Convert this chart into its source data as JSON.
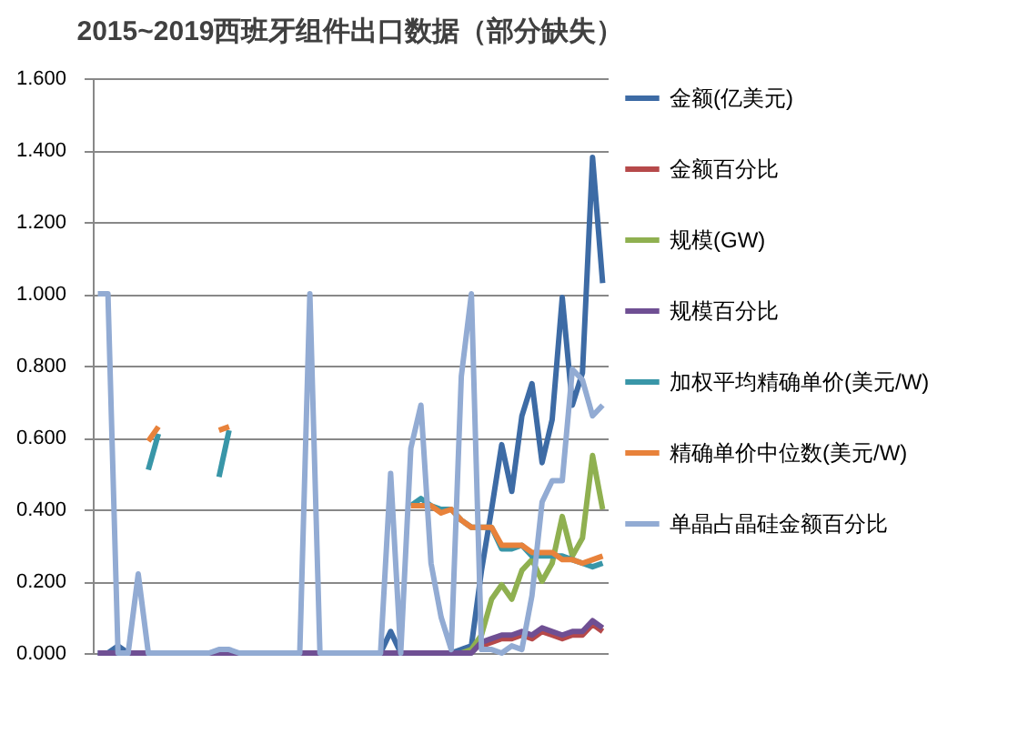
{
  "chart_data": {
    "type": "line",
    "title": "2015~2019西班牙组件出口数据（部分缺失）",
    "categories": [
      null,
      null,
      null,
      null,
      null,
      null,
      null,
      null,
      null,
      null,
      null,
      null,
      null,
      null,
      null,
      null,
      null,
      null,
      null,
      null,
      null,
      null,
      null,
      null,
      null,
      null,
      null,
      null,
      null,
      null,
      null,
      null,
      null,
      null,
      null,
      null,
      null,
      null,
      null,
      null,
      null,
      null,
      null,
      null,
      null,
      null,
      null,
      null,
      null,
      null,
      null
    ],
    "ylim": [
      0,
      1.6
    ],
    "yticks": [
      {
        "value": 0,
        "label": "0.000"
      },
      {
        "value": 0.2,
        "label": "0.200"
      },
      {
        "value": 0.4,
        "label": "0.400"
      },
      {
        "value": 0.6,
        "label": "0.600"
      },
      {
        "value": 0.8,
        "label": "0.800"
      },
      {
        "value": 1,
        "label": "1.000"
      },
      {
        "value": 1.2,
        "label": "1.200"
      },
      {
        "value": 1.4,
        "label": "1.400"
      },
      {
        "value": 1.6,
        "label": "1.600"
      }
    ],
    "grid": "y",
    "legend": "right",
    "tick_labels": "y",
    "marker": "none",
    "line_style": "solid",
    "series": [
      {
        "name": "金额(亿美元)",
        "color": "#3d6ba5",
        "values": [
          0,
          0,
          0.02,
          0,
          0,
          0,
          0,
          0,
          0,
          0,
          0,
          0,
          0,
          0,
          0,
          0,
          0,
          0,
          0,
          0,
          0,
          0,
          0,
          0,
          0,
          0,
          0,
          0,
          0,
          0.06,
          0,
          0,
          0,
          0,
          0,
          0,
          0.01,
          0.02,
          0.23,
          0.4,
          0.58,
          0.45,
          0.66,
          0.75,
          0.53,
          0.65,
          0.99,
          0.69,
          0.78,
          1.38,
          1.03
        ]
      },
      {
        "name": "金额百分比",
        "color": "#b6494a",
        "values": [
          null,
          null,
          null,
          null,
          null,
          null,
          null,
          null,
          null,
          null,
          null,
          null,
          null,
          null,
          null,
          null,
          null,
          null,
          null,
          null,
          null,
          null,
          null,
          null,
          null,
          null,
          null,
          null,
          null,
          null,
          null,
          null,
          null,
          null,
          null,
          null,
          null,
          null,
          0.02,
          0.03,
          0.04,
          0.04,
          0.05,
          0.04,
          0.06,
          0.05,
          0.04,
          0.05,
          0.05,
          0.08,
          0.06
        ]
      },
      {
        "name": "规模(GW)",
        "color": "#8fb050",
        "values": [
          null,
          null,
          null,
          null,
          null,
          null,
          null,
          null,
          null,
          null,
          null,
          null,
          null,
          null,
          null,
          null,
          null,
          null,
          null,
          null,
          null,
          null,
          null,
          null,
          null,
          null,
          null,
          null,
          null,
          null,
          null,
          null,
          null,
          null,
          null,
          null,
          0,
          0.01,
          0.05,
          0.15,
          0.19,
          0.15,
          0.23,
          0.26,
          0.2,
          0.25,
          0.38,
          0.27,
          0.32,
          0.55,
          0.4
        ]
      },
      {
        "name": "规模百分比",
        "color": "#6f4f93",
        "values": [
          0,
          0,
          0,
          0,
          0,
          0,
          0,
          0,
          0,
          0,
          0,
          0,
          0,
          0,
          0,
          0,
          0,
          0,
          0,
          0,
          0,
          0,
          0,
          0,
          0,
          0,
          0,
          0,
          0,
          0,
          0,
          0,
          0,
          0,
          0,
          0,
          0,
          0,
          0.03,
          0.04,
          0.05,
          0.05,
          0.06,
          0.05,
          0.07,
          0.06,
          0.05,
          0.06,
          0.06,
          0.09,
          0.07
        ]
      },
      {
        "name": "加权平均精确单价(美元/W)",
        "color": "#3996a8",
        "values": [
          null,
          null,
          null,
          null,
          null,
          0.51,
          0.61,
          null,
          null,
          null,
          null,
          null,
          0.49,
          0.62,
          null,
          null,
          null,
          null,
          null,
          null,
          null,
          null,
          null,
          null,
          null,
          null,
          null,
          null,
          null,
          null,
          null,
          0.41,
          0.43,
          0.41,
          0.4,
          0.4,
          0.37,
          0.35,
          0.35,
          0.35,
          0.29,
          0.29,
          0.3,
          0.27,
          0.27,
          0.27,
          0.27,
          0.26,
          0.25,
          0.24,
          0.25
        ]
      },
      {
        "name": "精确单价中位数(美元/W)",
        "color": "#e8823b",
        "values": [
          null,
          null,
          null,
          null,
          null,
          0.59,
          0.63,
          null,
          null,
          null,
          null,
          null,
          0.62,
          0.63,
          null,
          null,
          null,
          null,
          null,
          null,
          null,
          null,
          null,
          null,
          null,
          null,
          null,
          null,
          null,
          null,
          null,
          0.41,
          0.41,
          0.41,
          0.39,
          0.4,
          0.37,
          0.35,
          0.35,
          0.35,
          0.3,
          0.3,
          0.3,
          0.28,
          0.28,
          0.28,
          0.26,
          0.26,
          0.25,
          0.26,
          0.27
        ]
      },
      {
        "name": "单晶占晶硅金额百分比",
        "color": "#92abd3",
        "values": [
          1.0,
          1.0,
          0,
          0,
          0.22,
          0,
          0,
          0,
          0,
          0,
          0,
          0,
          0.01,
          0.01,
          0,
          0,
          0,
          0,
          0,
          0,
          0,
          1.0,
          0,
          0,
          0,
          0,
          0,
          0,
          0,
          0.5,
          0,
          0.57,
          0.69,
          0.25,
          0.1,
          0.01,
          0.77,
          1.0,
          0.01,
          0.01,
          0,
          0.02,
          0.01,
          0.16,
          0.42,
          0.48,
          0.48,
          0.79,
          0.76,
          0.66,
          0.69
        ]
      }
    ]
  }
}
